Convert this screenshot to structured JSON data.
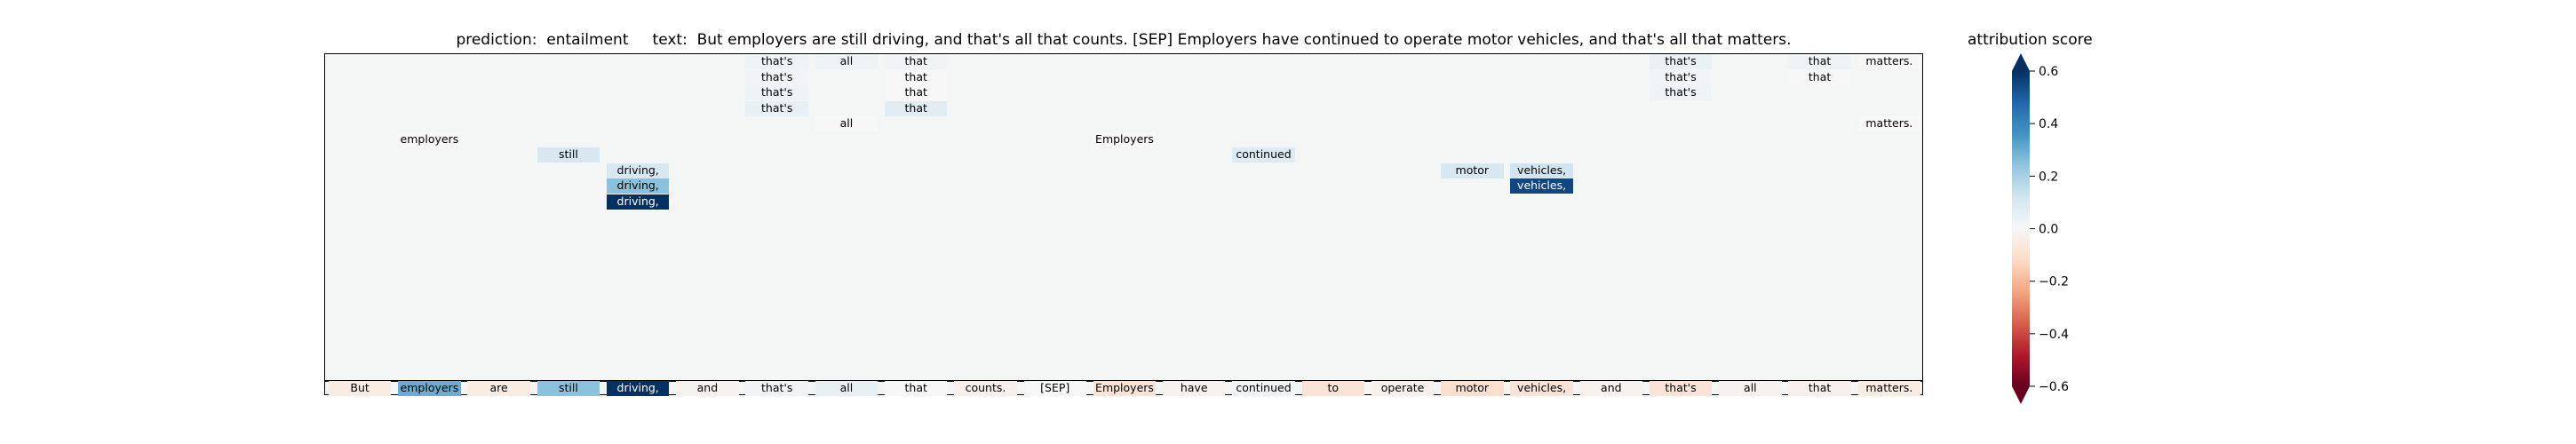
{
  "chart_data": {
    "type": "heatmap",
    "title_prefix": "prediction:  entailment",
    "title_text": "text:  But employers are still driving, and that's all that counts. [SEP] Employers have continued to operate motor vehicles, and that's all that matters.",
    "tokens": [
      "But",
      "employers",
      "are",
      "still",
      "driving,",
      "and",
      "that's",
      "all",
      "that",
      "counts.",
      "[SEP]",
      "Employers",
      "have",
      "continued",
      "to",
      "operate",
      "motor",
      "vehicles,",
      "and",
      "that's",
      "all",
      "that",
      "matters."
    ],
    "row_count": 22,
    "base_row": [
      -0.05,
      0.3,
      -0.05,
      0.25,
      0.95,
      -0.02,
      0.02,
      0.05,
      0.0,
      -0.03,
      0.0,
      -0.08,
      -0.02,
      0.02,
      -0.08,
      -0.03,
      -0.1,
      -0.08,
      -0.02,
      -0.08,
      -0.02,
      -0.03,
      -0.05
    ],
    "cells": [
      {
        "col": 6,
        "row": 21,
        "value": 0.03
      },
      {
        "col": 6,
        "row": 20,
        "value": 0.02
      },
      {
        "col": 6,
        "row": 19,
        "value": 0.03
      },
      {
        "col": 6,
        "row": 18,
        "value": 0.05
      },
      {
        "col": 7,
        "row": 21,
        "value": 0.03
      },
      {
        "col": 7,
        "row": 17,
        "value": 0.0
      },
      {
        "col": 8,
        "row": 21,
        "value": 0.02
      },
      {
        "col": 8,
        "row": 20,
        "value": 0.0
      },
      {
        "col": 8,
        "row": 19,
        "value": 0.0
      },
      {
        "col": 8,
        "row": 18,
        "value": 0.07
      },
      {
        "col": 1,
        "row": 16,
        "value": 0.0
      },
      {
        "col": 3,
        "row": 15,
        "value": 0.1
      },
      {
        "col": 4,
        "row": 14,
        "value": 0.1
      },
      {
        "col": 4,
        "row": 13,
        "value": 0.25
      },
      {
        "col": 4,
        "row": 12,
        "value": 0.6
      },
      {
        "col": 11,
        "row": 16,
        "value": 0.0
      },
      {
        "col": 13,
        "row": 15,
        "value": 0.08
      },
      {
        "col": 16,
        "row": 14,
        "value": 0.1
      },
      {
        "col": 17,
        "row": 14,
        "value": 0.12
      },
      {
        "col": 17,
        "row": 13,
        "value": 0.55
      },
      {
        "col": 19,
        "row": 21,
        "value": 0.04
      },
      {
        "col": 19,
        "row": 20,
        "value": 0.02
      },
      {
        "col": 19,
        "row": 19,
        "value": 0.03
      },
      {
        "col": 21,
        "row": 21,
        "value": 0.03
      },
      {
        "col": 21,
        "row": 20,
        "value": 0.0
      },
      {
        "col": 22,
        "row": 21,
        "value": 0.0
      },
      {
        "col": 22,
        "row": 17,
        "value": 0.0
      }
    ],
    "colorbar": {
      "label": "attribution score",
      "range": [
        -0.6,
        0.6
      ],
      "ticks": [
        0.6,
        0.4,
        0.2,
        0.0,
        -0.2,
        -0.4,
        -0.6
      ],
      "tick_labels": [
        "0.6",
        "0.4",
        "0.2",
        "0.0",
        "−0.2",
        "−0.4",
        "−0.6"
      ],
      "colormap": "RdBu",
      "extend": "both"
    }
  }
}
